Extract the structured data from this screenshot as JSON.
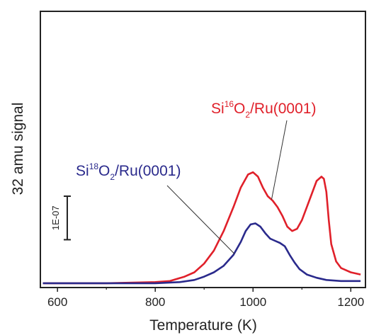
{
  "chart_data": {
    "type": "line",
    "xlabel": "Temperature (K)",
    "ylabel": "32 amu signal",
    "xlim": [
      565,
      1230
    ],
    "ylim": [
      -0.02,
      1.25
    ],
    "yticks_shown": false,
    "grid": false,
    "xticks": [
      600,
      800,
      1000,
      1200
    ],
    "xtick_labels": [
      "600",
      "800",
      "1000",
      "1200"
    ],
    "scale_bar": {
      "label": "1E-07",
      "size": 0.2
    },
    "series": [
      {
        "name": "Si16O2/Ru(0001)",
        "color": "#e0202a",
        "x": [
          570,
          700,
          800,
          830,
          860,
          880,
          900,
          920,
          940,
          960,
          975,
          990,
          1000,
          1010,
          1020,
          1030,
          1040,
          1050,
          1060,
          1070,
          1080,
          1090,
          1100,
          1110,
          1120,
          1130,
          1140,
          1145,
          1150,
          1155,
          1160,
          1170,
          1180,
          1200,
          1220
        ],
        "y": [
          0.0,
          0.0,
          0.005,
          0.01,
          0.03,
          0.05,
          0.09,
          0.15,
          0.24,
          0.35,
          0.44,
          0.5,
          0.51,
          0.49,
          0.44,
          0.4,
          0.38,
          0.35,
          0.31,
          0.26,
          0.24,
          0.25,
          0.29,
          0.35,
          0.41,
          0.47,
          0.49,
          0.48,
          0.42,
          0.29,
          0.18,
          0.1,
          0.07,
          0.05,
          0.04
        ]
      },
      {
        "name": "Si18O2/Ru(0001)",
        "color": "#2a2a8c",
        "x": [
          570,
          700,
          800,
          850,
          880,
          900,
          920,
          940,
          960,
          975,
          985,
          995,
          1005,
          1015,
          1025,
          1035,
          1045,
          1055,
          1065,
          1075,
          1085,
          1095,
          1110,
          1130,
          1150,
          1180,
          1220
        ],
        "y": [
          0.0,
          0.0,
          0.0,
          0.005,
          0.015,
          0.03,
          0.05,
          0.08,
          0.13,
          0.19,
          0.24,
          0.27,
          0.275,
          0.26,
          0.23,
          0.205,
          0.195,
          0.185,
          0.17,
          0.13,
          0.095,
          0.065,
          0.04,
          0.025,
          0.015,
          0.01,
          0.01
        ]
      }
    ],
    "annotations": [
      {
        "base": "Si",
        "sup": "16",
        "mid": "O",
        "sub": "2",
        "tail": "/Ru(0001)",
        "color": "#e0202a"
      },
      {
        "base": "Si",
        "sup": "18",
        "mid": "O",
        "sub": "2",
        "tail": "/Ru(0001)",
        "color": "#2a2a8c"
      }
    ]
  }
}
